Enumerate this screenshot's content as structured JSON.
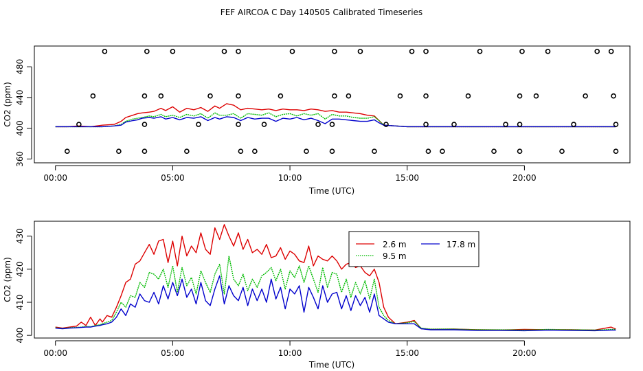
{
  "title": "FEF AIRCOA C  Day 140505  Calibrated Timeseries",
  "colors": {
    "s1": "#dd0000",
    "s2": "#00bb00",
    "s3": "#0000cc",
    "flag": "#000000"
  },
  "chart_data": [
    {
      "type": "line",
      "panel": "top",
      "xlabel": "Time (UTC)",
      "ylabel": "CO2 (ppm)",
      "xlim": [
        -0.9,
        24.5
      ],
      "ylim": [
        355,
        507
      ],
      "xticks": [
        0,
        5,
        10,
        15,
        20
      ],
      "xtick_labels": [
        "00:00",
        "05:00",
        "10:00",
        "15:00",
        "20:00"
      ],
      "yticks": [
        360,
        400,
        440,
        480
      ],
      "ytick_labels": [
        "360",
        "400",
        "440",
        "480"
      ],
      "series": [
        {
          "name": "2.6 m",
          "color": "#dd0000",
          "x": [
            0,
            0.5,
            1,
            1.5,
            2,
            2.5,
            2.8,
            3,
            3.3,
            3.5,
            3.7,
            4,
            4.2,
            4.5,
            4.7,
            5,
            5.3,
            5.6,
            5.9,
            6.2,
            6.5,
            6.8,
            7,
            7.3,
            7.6,
            7.9,
            8.2,
            8.5,
            8.8,
            9.1,
            9.4,
            9.7,
            10,
            10.3,
            10.6,
            10.9,
            11.2,
            11.5,
            11.8,
            12.1,
            12.4,
            12.7,
            13,
            13.3,
            13.6,
            13.8,
            14,
            14.5,
            15,
            16,
            18,
            20,
            22,
            23.9
          ],
          "y": [
            402,
            402,
            403,
            402,
            404,
            405,
            409,
            414,
            417,
            419,
            420,
            421,
            422,
            426,
            423,
            428,
            421,
            426,
            424,
            427,
            422,
            429,
            426,
            432,
            430,
            424,
            426,
            425,
            424,
            425,
            423,
            425,
            424,
            424,
            423,
            425,
            424,
            422,
            423,
            421,
            421,
            420,
            419,
            417,
            416,
            410,
            404,
            403,
            402,
            402,
            402,
            402,
            402,
            402
          ]
        },
        {
          "name": "9.5 m",
          "color": "#00bb00",
          "x": [
            0,
            0.5,
            1,
            1.5,
            2,
            2.5,
            2.8,
            3,
            3.3,
            3.5,
            3.7,
            4,
            4.2,
            4.5,
            4.7,
            5,
            5.3,
            5.6,
            5.9,
            6.2,
            6.5,
            6.8,
            7,
            7.3,
            7.6,
            7.9,
            8.2,
            8.5,
            8.8,
            9.1,
            9.4,
            9.7,
            10,
            10.3,
            10.6,
            10.9,
            11.2,
            11.5,
            11.8,
            12.1,
            12.4,
            12.7,
            13,
            13.3,
            13.6,
            13.8,
            14,
            14.5,
            15,
            16,
            18,
            20,
            22,
            23.9
          ],
          "y": [
            402,
            402,
            402,
            402,
            402,
            403,
            405,
            409,
            412,
            413,
            414,
            416,
            415,
            418,
            415,
            417,
            414,
            418,
            416,
            419,
            413,
            420,
            417,
            417,
            419,
            413,
            419,
            418,
            417,
            420,
            415,
            418,
            419,
            416,
            419,
            417,
            419,
            412,
            418,
            416,
            416,
            414,
            413,
            413,
            415,
            410,
            404,
            403,
            402,
            402,
            402,
            402,
            402,
            402
          ]
        },
        {
          "name": "17.8 m",
          "color": "#0000cc",
          "x": [
            0,
            0.5,
            1,
            1.5,
            2,
            2.5,
            2.8,
            3,
            3.3,
            3.5,
            3.7,
            4,
            4.2,
            4.5,
            4.7,
            5,
            5.3,
            5.6,
            5.9,
            6.2,
            6.5,
            6.8,
            7,
            7.3,
            7.6,
            7.9,
            8.2,
            8.5,
            8.8,
            9.1,
            9.4,
            9.7,
            10,
            10.3,
            10.6,
            10.9,
            11.2,
            11.5,
            11.8,
            12.1,
            12.4,
            12.7,
            13,
            13.3,
            13.6,
            13.8,
            14,
            14.5,
            15,
            16,
            18,
            20,
            22,
            23.9
          ],
          "y": [
            402,
            402,
            402,
            402,
            402,
            403,
            404,
            408,
            410,
            411,
            413,
            414,
            413,
            415,
            412,
            414,
            411,
            414,
            413,
            415,
            410,
            414,
            412,
            415,
            414,
            410,
            414,
            412,
            413,
            413,
            409,
            413,
            412,
            414,
            411,
            413,
            410,
            406,
            412,
            412,
            411,
            410,
            409,
            409,
            411,
            407,
            404,
            403,
            402,
            402,
            402,
            402,
            402,
            402
          ]
        }
      ],
      "flag_points": {
        "x": [
          1.0,
          3.8,
          6.1,
          7.8,
          8.9,
          11.2,
          11.8,
          14.1,
          15.8,
          17.0,
          19.2,
          19.8,
          22.1,
          23.9,
          0.5,
          2.7,
          3.8,
          5.6,
          7.9,
          8.5,
          10.7,
          11.8,
          13.6,
          15.9,
          16.5,
          18.7,
          19.8,
          21.6,
          23.9,
          1.6,
          3.8,
          4.5,
          6.6,
          7.8,
          9.6,
          11.9,
          12.5,
          14.7,
          15.8,
          17.6,
          19.8,
          20.5,
          22.6,
          23.8,
          2.1,
          3.9,
          5.0,
          7.2,
          7.8,
          10.1,
          11.9,
          13.0,
          15.2,
          15.8,
          18.1,
          19.9,
          21.0,
          23.1,
          23.7
        ],
        "y": [
          405,
          405,
          405,
          405,
          405,
          405,
          405,
          405,
          405,
          405,
          405,
          405,
          405,
          405,
          370,
          370,
          370,
          370,
          370,
          370,
          370,
          370,
          370,
          370,
          370,
          370,
          370,
          370,
          370,
          442,
          442,
          442,
          442,
          442,
          442,
          442,
          442,
          442,
          442,
          442,
          442,
          442,
          442,
          442,
          500,
          500,
          500,
          500,
          500,
          500,
          500,
          500,
          500,
          500,
          500,
          500,
          500,
          500,
          500
        ]
      }
    },
    {
      "type": "line",
      "panel": "bottom",
      "xlabel": "Time (UTC)",
      "ylabel": "CO2 (ppm)",
      "xlim": [
        -0.9,
        24.5
      ],
      "ylim": [
        399.2,
        434.5
      ],
      "xticks": [
        0,
        5,
        10,
        15,
        20
      ],
      "xtick_labels": [
        "00:00",
        "05:00",
        "10:00",
        "15:00",
        "20:00"
      ],
      "yticks": [
        400,
        410,
        420,
        430
      ],
      "ytick_labels": [
        "400",
        "410",
        "420",
        "430"
      ],
      "legend": "top-right",
      "series": [
        {
          "name": "2.6 m",
          "color": "#dd0000",
          "x": [
            0,
            0.3,
            0.6,
            0.9,
            1.1,
            1.3,
            1.5,
            1.7,
            1.9,
            2.0,
            2.2,
            2.4,
            2.6,
            2.8,
            3.0,
            3.2,
            3.4,
            3.6,
            3.8,
            4.0,
            4.2,
            4.4,
            4.6,
            4.8,
            5.0,
            5.2,
            5.4,
            5.6,
            5.8,
            6.0,
            6.2,
            6.4,
            6.6,
            6.8,
            7.0,
            7.2,
            7.4,
            7.6,
            7.8,
            8.0,
            8.2,
            8.4,
            8.6,
            8.8,
            9.0,
            9.2,
            9.4,
            9.6,
            9.8,
            10.0,
            10.2,
            10.4,
            10.6,
            10.8,
            11.0,
            11.2,
            11.4,
            11.6,
            11.8,
            12.0,
            12.2,
            12.4,
            12.6,
            12.8,
            13.0,
            13.2,
            13.4,
            13.6,
            13.8,
            14.0,
            14.2,
            14.5,
            15.0,
            15.3,
            15.6,
            16,
            17,
            18,
            19,
            20,
            21,
            22,
            23,
            23.7,
            23.9
          ],
          "y": [
            402.5,
            402.2,
            402.5,
            402.8,
            404.0,
            403.0,
            405.5,
            403.0,
            405.0,
            404.0,
            406.0,
            405.5,
            408.5,
            412.0,
            416.0,
            417.0,
            421.5,
            422.5,
            425.0,
            427.5,
            424.5,
            428.5,
            429.0,
            422.0,
            428.5,
            421.0,
            430.0,
            424.0,
            427.0,
            425.0,
            431.0,
            426.0,
            424.5,
            432.5,
            429.0,
            433.5,
            430.0,
            427.0,
            431.0,
            426.0,
            429.0,
            425.0,
            426.0,
            424.5,
            427.5,
            423.5,
            424.0,
            426.5,
            423.0,
            425.5,
            424.5,
            422.5,
            422.0,
            427.0,
            421.0,
            424.0,
            423.0,
            422.5,
            424.0,
            422.5,
            420.0,
            421.5,
            422.0,
            420.5,
            421.0,
            419.0,
            418.0,
            420.0,
            416.0,
            408.5,
            405.5,
            403.5,
            404.0,
            404.5,
            402.0,
            401.8,
            401.9,
            401.7,
            401.6,
            401.8,
            401.7,
            401.7,
            401.6,
            402.5,
            401.9
          ]
        },
        {
          "name": "9.5 m",
          "color": "#00bb00",
          "x": [
            0,
            0.3,
            0.6,
            0.9,
            1.1,
            1.3,
            1.5,
            1.7,
            1.9,
            2.0,
            2.2,
            2.4,
            2.6,
            2.8,
            3.0,
            3.2,
            3.4,
            3.6,
            3.8,
            4.0,
            4.2,
            4.4,
            4.6,
            4.8,
            5.0,
            5.2,
            5.4,
            5.6,
            5.8,
            6.0,
            6.2,
            6.4,
            6.6,
            6.8,
            7.0,
            7.2,
            7.4,
            7.6,
            7.8,
            8.0,
            8.2,
            8.4,
            8.6,
            8.8,
            9.0,
            9.2,
            9.4,
            9.6,
            9.8,
            10.0,
            10.2,
            10.4,
            10.6,
            10.8,
            11.0,
            11.2,
            11.4,
            11.6,
            11.8,
            12.0,
            12.2,
            12.4,
            12.6,
            12.8,
            13.0,
            13.2,
            13.4,
            13.6,
            13.8,
            14.0,
            14.2,
            14.5,
            15.0,
            15.3,
            15.6,
            16,
            17,
            18,
            19,
            20,
            21,
            22,
            23,
            23.7,
            23.9
          ],
          "y": [
            402.3,
            402.1,
            402.3,
            402.4,
            402.5,
            402.7,
            402.6,
            403.0,
            403.2,
            403.5,
            404.0,
            404.5,
            407.0,
            410.0,
            408.5,
            412.0,
            411.5,
            416.0,
            414.5,
            419.0,
            418.5,
            417.0,
            420.0,
            414.5,
            421.0,
            413.0,
            420.5,
            415.0,
            417.5,
            412.5,
            419.5,
            416.0,
            413.0,
            418.5,
            421.5,
            412.5,
            424.0,
            417.0,
            415.0,
            418.5,
            413.5,
            417.0,
            414.5,
            418.0,
            419.0,
            420.5,
            416.5,
            420.0,
            414.0,
            419.5,
            417.5,
            421.0,
            416.0,
            421.0,
            417.0,
            413.0,
            420.5,
            414.5,
            419.0,
            418.5,
            413.0,
            417.0,
            411.5,
            416.0,
            412.5,
            416.5,
            411.0,
            417.0,
            408.5,
            406.0,
            404.5,
            403.5,
            403.8,
            404.2,
            402.2,
            401.9,
            401.9,
            401.7,
            401.7,
            401.6,
            401.8,
            401.7,
            401.6,
            401.8,
            401.8
          ]
        },
        {
          "name": "17.8 m",
          "color": "#0000cc",
          "x": [
            0,
            0.3,
            0.6,
            0.9,
            1.1,
            1.3,
            1.5,
            1.7,
            1.9,
            2.0,
            2.2,
            2.4,
            2.6,
            2.8,
            3.0,
            3.2,
            3.4,
            3.6,
            3.8,
            4.0,
            4.2,
            4.4,
            4.6,
            4.8,
            5.0,
            5.2,
            5.4,
            5.6,
            5.8,
            6.0,
            6.2,
            6.4,
            6.6,
            6.8,
            7.0,
            7.2,
            7.4,
            7.6,
            7.8,
            8.0,
            8.2,
            8.4,
            8.6,
            8.8,
            9.0,
            9.2,
            9.4,
            9.6,
            9.8,
            10.0,
            10.2,
            10.4,
            10.6,
            10.8,
            11.0,
            11.2,
            11.4,
            11.6,
            11.8,
            12.0,
            12.2,
            12.4,
            12.6,
            12.8,
            13.0,
            13.2,
            13.4,
            13.6,
            13.8,
            14.0,
            14.2,
            14.5,
            15.0,
            15.3,
            15.6,
            16,
            17,
            18,
            19,
            20,
            21,
            22,
            23,
            23.7,
            23.9
          ],
          "y": [
            402.2,
            402.0,
            402.2,
            402.3,
            402.4,
            402.5,
            402.5,
            402.8,
            403.0,
            403.2,
            403.5,
            404.0,
            405.5,
            408.0,
            406.0,
            409.5,
            408.5,
            412.5,
            410.5,
            410.0,
            413.0,
            409.5,
            415.0,
            411.0,
            416.0,
            412.0,
            417.0,
            411.5,
            414.0,
            409.5,
            416.0,
            410.5,
            409.0,
            414.0,
            418.0,
            409.5,
            415.0,
            412.0,
            410.5,
            414.5,
            409.0,
            414.0,
            410.5,
            414.0,
            410.0,
            417.0,
            411.0,
            414.5,
            408.0,
            414.0,
            412.5,
            415.0,
            407.0,
            414.5,
            411.5,
            408.0,
            415.0,
            410.0,
            412.5,
            413.0,
            408.0,
            412.0,
            407.5,
            412.0,
            409.0,
            411.5,
            407.0,
            412.5,
            406.0,
            405.0,
            404.0,
            403.5,
            403.5,
            403.5,
            402.0,
            401.7,
            401.7,
            401.5,
            401.5,
            401.4,
            401.6,
            401.5,
            401.4,
            401.6,
            401.6
          ]
        }
      ]
    }
  ]
}
